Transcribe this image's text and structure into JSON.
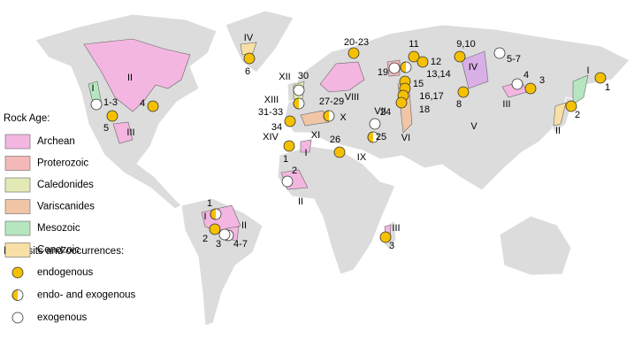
{
  "legend": {
    "rock_age_title": "Rock Age:",
    "rock_ages": [
      {
        "label": "Archean",
        "color": "#f2b6e0"
      },
      {
        "label": "Proterozoic",
        "color": "#f4b8b8"
      },
      {
        "label": "Caledonides",
        "color": "#e2e9b4"
      },
      {
        "label": "Variscanides",
        "color": "#f0c6a6"
      },
      {
        "label": "Mesozoic",
        "color": "#b6e6c0"
      },
      {
        "label": "Cenozoic",
        "color": "#f8dfa6"
      }
    ],
    "deposits_title": "Deposits and occurrences:",
    "deposit_types": [
      {
        "label": "endogenous"
      },
      {
        "label": "endo- and exogenous"
      },
      {
        "label": "exogenous"
      }
    ]
  },
  "region_labels": [
    "II",
    "I",
    "III",
    "IV",
    "XII",
    "VIII",
    "VII",
    "XIII",
    "XI",
    "X",
    "IX",
    "VI",
    "V",
    "IV",
    "I",
    "III",
    "II",
    "XIV",
    "I",
    "II",
    "III",
    "I",
    "II"
  ],
  "deposit_labels": [
    "1-3",
    "4",
    "5",
    "6",
    "30",
    "31-33",
    "27-29",
    "20-23",
    "11",
    "12",
    "19",
    "13,14",
    "15",
    "16,17",
    "18",
    "9,10",
    "5-7",
    "8",
    "4",
    "3",
    "1",
    "2",
    "24",
    "25",
    "26",
    "34",
    "1",
    "2",
    "1",
    "2",
    "3",
    "4-7",
    "3"
  ]
}
